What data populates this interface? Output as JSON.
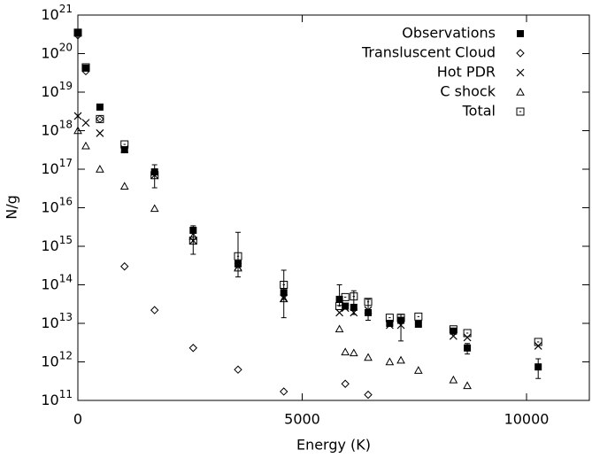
{
  "chart_data": {
    "type": "scatter",
    "xlabel": "Energy (K)",
    "ylabel": "N/g",
    "xlim": [
      0,
      11400
    ],
    "xticks": [
      0,
      5000,
      10000
    ],
    "ylim": [
      100000000000.0,
      1e+21
    ],
    "log_y": true,
    "yticks": [
      {
        "value": 100000000000.0,
        "label": "10^11"
      },
      {
        "value": 1000000000000.0,
        "label": "10^12"
      },
      {
        "value": 10000000000000.0,
        "label": "10^13"
      },
      {
        "value": 100000000000000.0,
        "label": "10^14"
      },
      {
        "value": 1000000000000000.0,
        "label": "10^15"
      },
      {
        "value": 1e+16,
        "label": "10^16"
      },
      {
        "value": 1e+17,
        "label": "10^17"
      },
      {
        "value": 1e+18,
        "label": "10^18"
      },
      {
        "value": 1e+19,
        "label": "10^19"
      },
      {
        "value": 1e+20,
        "label": "10^20"
      },
      {
        "value": 1e+21,
        "label": "10^21"
      }
    ],
    "legend": "upper right",
    "series": [
      {
        "name": "Observations",
        "marker": "filled-square",
        "color": "#000000",
        "x": [
          0,
          177,
          491,
          1040,
          1710,
          2570,
          3570,
          4590,
          5830,
          5960,
          6150,
          6470,
          6950,
          7200,
          7590,
          8370,
          8680,
          10260
        ],
        "values": [
          3.5e+20,
          4.2e+19,
          4.1e+18,
          3.2e+17,
          8.5e+16,
          2600000000000000.0,
          350000000000000.0,
          63000000000000.0,
          42000000000000.0,
          28000000000000.0,
          26000000000000.0,
          19000000000000.0,
          10000000000000.0,
          12000000000000.0,
          9500000000000.0,
          6300000000000.0,
          2300000000000.0,
          740000000000.0
        ],
        "error_high": [
          null,
          null,
          null,
          null,
          1.3e+17,
          3400000000000000.0,
          2300000000000000.0,
          240000000000000.0,
          100000000000000.0,
          null,
          70000000000000.0,
          42000000000000.0,
          null,
          17000000000000.0,
          null,
          null,
          3000000000000.0,
          1200000000000.0
        ],
        "error_low": [
          null,
          null,
          null,
          null,
          3.3e+16,
          620000000000000.0,
          160000000000000.0,
          14000000000000.0,
          29000000000000.0,
          null,
          17000000000000.0,
          12000000000000.0,
          null,
          3500000000000.0,
          null,
          null,
          1600000000000.0,
          370000000000.0
        ]
      },
      {
        "name": "Transluscent Cloud",
        "marker": "diamond",
        "color": "#000000",
        "x": [
          0,
          177,
          491,
          1040,
          1710,
          2570,
          3570,
          4590,
          5960,
          6470
        ],
        "values": [
          3e+20,
          3.5e+19,
          2e+18,
          300000000000000.0,
          22000000000000.0,
          2300000000000.0,
          630000000000.0,
          170000000000.0,
          270000000000.0,
          140000000000.0
        ]
      },
      {
        "name": "Hot PDR",
        "marker": "cross",
        "color": "#000000",
        "x": [
          0,
          177,
          491,
          1040,
          1710,
          2570,
          3570,
          4590,
          5830,
          5960,
          6150,
          6470,
          6950,
          7200,
          8370,
          8680,
          10260
        ],
        "values": [
          2.4e+18,
          1.6e+18,
          8.6e+17,
          3.3e+17,
          7e+16,
          1400000000000000.0,
          300000000000000.0,
          45000000000000.0,
          19000000000000.0,
          25000000000000.0,
          19000000000000.0,
          22000000000000.0,
          9000000000000.0,
          9000000000000.0,
          4700000000000.0,
          4300000000000.0,
          2600000000000.0
        ]
      },
      {
        "name": "C shock",
        "marker": "triangle",
        "color": "#000000",
        "x": [
          0,
          177,
          491,
          1040,
          1710,
          2570,
          3570,
          4590,
          5830,
          5960,
          6150,
          6470,
          6950,
          7200,
          7590,
          8370,
          8680
        ],
        "values": [
          1e+18,
          4e+17,
          1e+17,
          3.6e+16,
          9500000000000000.0,
          1800000000000000.0,
          270000000000000.0,
          43000000000000.0,
          7100000000000.0,
          1800000000000.0,
          1700000000000.0,
          1300000000000.0,
          1000000000000.0,
          1100000000000.0,
          600000000000.0,
          340000000000.0,
          240000000000.0
        ]
      },
      {
        "name": "Total",
        "marker": "open-square",
        "color": "#000000",
        "x": [
          0,
          177,
          491,
          1040,
          1710,
          2570,
          3570,
          4590,
          5830,
          5960,
          6150,
          6470,
          6950,
          7200,
          7590,
          8370,
          8680,
          10260
        ],
        "values": [
          3.5e+20,
          4.4e+19,
          2e+18,
          4.4e+17,
          7e+16,
          1400000000000000.0,
          550000000000000.0,
          100000000000000.0,
          28000000000000.0,
          48000000000000.0,
          50000000000000.0,
          36000000000000.0,
          14000000000000.0,
          14000000000000.0,
          15000000000000.0,
          7000000000000.0,
          5600000000000.0,
          3300000000000.0
        ]
      }
    ]
  }
}
